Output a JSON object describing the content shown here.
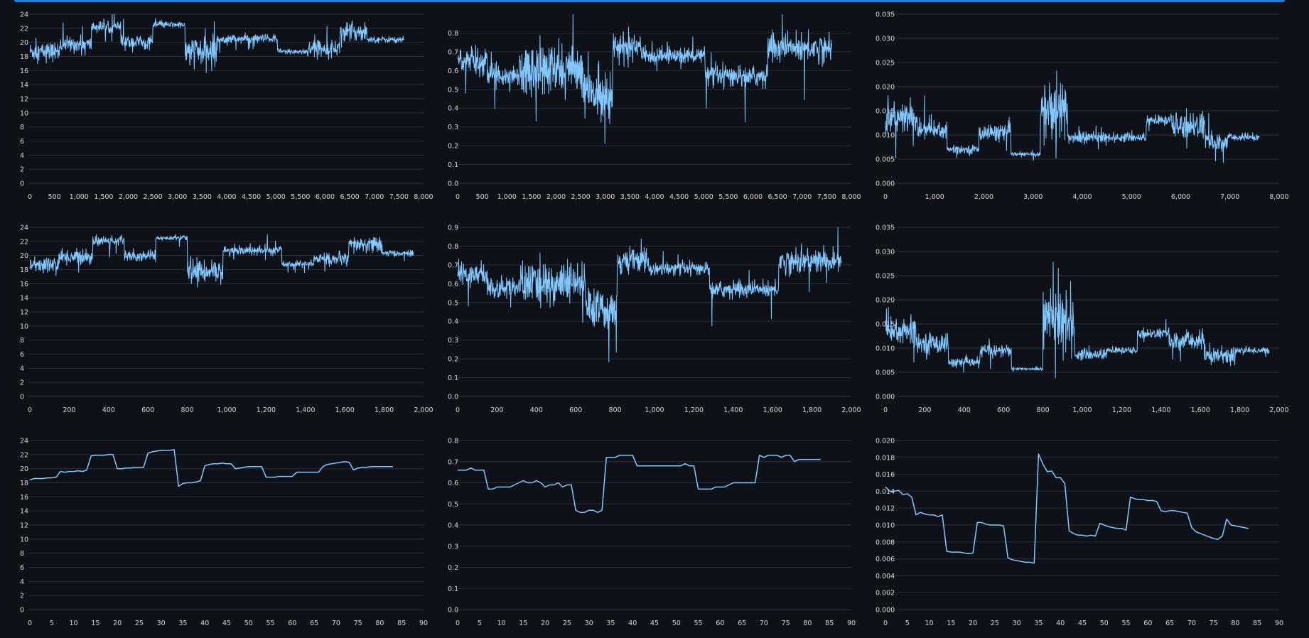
{
  "colors": {
    "background": "#0e1117",
    "line": "#83c9ff",
    "grid": "#2a2e37",
    "accent": "#1c83e1",
    "tick": "#d6d6d9"
  },
  "charts": [
    {
      "type": "line",
      "row": 0,
      "col": 0,
      "xlim": [
        0,
        8000
      ],
      "xticks": [
        0,
        500,
        1000,
        1500,
        2000,
        2500,
        3000,
        3500,
        4000,
        4500,
        5000,
        5500,
        6000,
        6500,
        7000,
        7500,
        8000
      ],
      "ylim": [
        0,
        24
      ],
      "yticks": [
        0,
        2,
        4,
        6,
        8,
        10,
        12,
        14,
        16,
        18,
        20,
        22,
        24
      ],
      "x_end": 7600,
      "noise": true,
      "levels": [
        [
          0,
          18.7,
          1.2
        ],
        [
          600,
          19.7,
          1.0
        ],
        [
          1250,
          22.2,
          0.7
        ],
        [
          1850,
          20.0,
          0.9
        ],
        [
          2500,
          22.5,
          0.4
        ],
        [
          3150,
          18.6,
          2.0
        ],
        [
          3800,
          20.5,
          0.6
        ],
        [
          5030,
          18.7,
          0.4
        ],
        [
          5650,
          19.2,
          1.0
        ],
        [
          6300,
          21.5,
          1.2
        ],
        [
          6850,
          20.4,
          0.4
        ]
      ]
    },
    {
      "type": "line",
      "row": 0,
      "col": 1,
      "xlim": [
        0,
        8000
      ],
      "xticks": [
        0,
        500,
        1000,
        1500,
        2000,
        2500,
        3000,
        3500,
        4000,
        4500,
        5000,
        5500,
        6000,
        6500,
        7000,
        7500,
        8000
      ],
      "ylim": [
        0,
        0.9
      ],
      "yticks": [
        0,
        0.1,
        0.2,
        0.3,
        0.4,
        0.5,
        0.6,
        0.7,
        0.8
      ],
      "x_end": 7600,
      "noise": true,
      "levels": [
        [
          0,
          0.65,
          0.07
        ],
        [
          600,
          0.58,
          0.05
        ],
        [
          1250,
          0.6,
          0.13
        ],
        [
          2550,
          0.48,
          0.12
        ],
        [
          3150,
          0.72,
          0.07
        ],
        [
          3800,
          0.68,
          0.04
        ],
        [
          5030,
          0.57,
          0.05
        ],
        [
          6300,
          0.72,
          0.07
        ]
      ]
    },
    {
      "type": "line",
      "row": 0,
      "col": 2,
      "xlim": [
        0,
        8000
      ],
      "xticks": [
        0,
        1000,
        2000,
        3000,
        4000,
        5000,
        6000,
        7000,
        8000
      ],
      "ylim": [
        0,
        0.035
      ],
      "yticks": [
        0,
        0.005,
        0.01,
        0.015,
        0.02,
        0.025,
        0.03,
        0.035
      ],
      "x_end": 7600,
      "noise": true,
      "levels": [
        [
          0,
          0.0135,
          0.003
        ],
        [
          650,
          0.011,
          0.002
        ],
        [
          1250,
          0.007,
          0.0008
        ],
        [
          1900,
          0.0105,
          0.0015
        ],
        [
          2550,
          0.006,
          0.0004
        ],
        [
          3150,
          0.015,
          0.006
        ],
        [
          3700,
          0.0095,
          0.0012
        ],
        [
          4500,
          0.0095,
          0.0008
        ],
        [
          5300,
          0.013,
          0.001
        ],
        [
          5800,
          0.012,
          0.0025
        ],
        [
          6500,
          0.0085,
          0.0018
        ],
        [
          6950,
          0.0095,
          0.0007
        ]
      ]
    },
    {
      "type": "line",
      "row": 1,
      "col": 0,
      "xlim": [
        0,
        2000
      ],
      "xticks": [
        0,
        200,
        400,
        600,
        800,
        1000,
        1200,
        1400,
        1600,
        1800,
        2000
      ],
      "ylim": [
        0,
        24
      ],
      "yticks": [
        0,
        2,
        4,
        6,
        8,
        10,
        12,
        14,
        16,
        18,
        20,
        22,
        24
      ],
      "x_end": 1950,
      "noise": true,
      "levels": [
        [
          0,
          18.7,
          1.0
        ],
        [
          150,
          19.8,
          1.0
        ],
        [
          320,
          22.1,
          0.6
        ],
        [
          480,
          20.0,
          0.8
        ],
        [
          640,
          22.5,
          0.3
        ],
        [
          800,
          17.8,
          1.5
        ],
        [
          980,
          20.7,
          0.6
        ],
        [
          1280,
          18.8,
          0.4
        ],
        [
          1440,
          19.5,
          0.8
        ],
        [
          1620,
          21.5,
          1.0
        ],
        [
          1790,
          20.3,
          0.4
        ]
      ]
    },
    {
      "type": "line",
      "row": 1,
      "col": 1,
      "xlim": [
        0,
        2000
      ],
      "xticks": [
        0,
        200,
        400,
        600,
        800,
        1000,
        1200,
        1400,
        1600,
        1800,
        2000
      ],
      "ylim": [
        0,
        0.9
      ],
      "yticks": [
        0,
        0.1,
        0.2,
        0.3,
        0.4,
        0.5,
        0.6,
        0.7,
        0.8,
        0.9
      ],
      "x_end": 1950,
      "noise": true,
      "levels": [
        [
          0,
          0.65,
          0.06
        ],
        [
          150,
          0.58,
          0.05
        ],
        [
          320,
          0.6,
          0.1
        ],
        [
          650,
          0.46,
          0.1
        ],
        [
          810,
          0.72,
          0.06
        ],
        [
          970,
          0.68,
          0.03
        ],
        [
          1280,
          0.57,
          0.04
        ],
        [
          1630,
          0.72,
          0.06
        ]
      ]
    },
    {
      "type": "line",
      "row": 1,
      "col": 2,
      "xlim": [
        0,
        2000
      ],
      "xticks": [
        0,
        200,
        400,
        600,
        800,
        1000,
        1200,
        1400,
        1600,
        1800,
        2000
      ],
      "ylim": [
        0,
        0.035
      ],
      "yticks": [
        0,
        0.005,
        0.01,
        0.015,
        0.02,
        0.025,
        0.03,
        0.035
      ],
      "x_end": 1950,
      "noise": true,
      "levels": [
        [
          0,
          0.0135,
          0.003
        ],
        [
          160,
          0.011,
          0.002
        ],
        [
          320,
          0.007,
          0.0008
        ],
        [
          480,
          0.0095,
          0.0012
        ],
        [
          640,
          0.0057,
          0.0003
        ],
        [
          800,
          0.016,
          0.006
        ],
        [
          960,
          0.0087,
          0.001
        ],
        [
          1120,
          0.0095,
          0.0007
        ],
        [
          1280,
          0.013,
          0.0009
        ],
        [
          1440,
          0.0115,
          0.0018
        ],
        [
          1620,
          0.0085,
          0.0018
        ],
        [
          1780,
          0.0095,
          0.0006
        ]
      ]
    },
    {
      "type": "line",
      "row": 2,
      "col": 0,
      "xlim": [
        0,
        90
      ],
      "xticks": [
        0,
        5,
        10,
        15,
        20,
        25,
        30,
        35,
        40,
        45,
        50,
        55,
        60,
        65,
        70,
        75,
        80,
        85,
        90
      ],
      "ylim": [
        0,
        24
      ],
      "yticks": [
        0,
        2,
        4,
        6,
        8,
        10,
        12,
        14,
        16,
        18,
        20,
        22,
        24
      ],
      "noise": false,
      "x": [
        0,
        1,
        2,
        3,
        4,
        5,
        6,
        7,
        8,
        9,
        10,
        11,
        12,
        13,
        14,
        15,
        16,
        17,
        18,
        19,
        20,
        21,
        22,
        23,
        24,
        25,
        26,
        27,
        28,
        29,
        30,
        31,
        32,
        33,
        34,
        35,
        36,
        37,
        38,
        39,
        40,
        41,
        42,
        43,
        44,
        45,
        46,
        47,
        48,
        49,
        50,
        51,
        52,
        53,
        54,
        55,
        56,
        57,
        58,
        59,
        60,
        61,
        62,
        63,
        64,
        65,
        66,
        67,
        68,
        69,
        70,
        71,
        72,
        73,
        74,
        75,
        76,
        77,
        78,
        79,
        80,
        81,
        82,
        83
      ],
      "values": [
        18.4,
        18.6,
        18.6,
        18.6,
        18.7,
        18.7,
        18.8,
        19.6,
        19.5,
        19.6,
        19.6,
        19.7,
        19.6,
        19.8,
        21.8,
        21.9,
        21.9,
        21.9,
        22.0,
        22.0,
        20.0,
        20.0,
        20.1,
        20.1,
        20.2,
        20.2,
        20.2,
        22.2,
        22.4,
        22.5,
        22.6,
        22.6,
        22.6,
        22.7,
        17.5,
        17.9,
        18.0,
        18.0,
        18.1,
        18.3,
        20.4,
        20.6,
        20.7,
        20.7,
        20.8,
        20.7,
        20.7,
        20.0,
        20.1,
        20.2,
        20.3,
        20.3,
        20.3,
        20.3,
        18.8,
        18.8,
        18.8,
        18.9,
        18.9,
        18.9,
        18.9,
        19.5,
        19.5,
        19.5,
        19.5,
        19.5,
        19.5,
        20.3,
        20.6,
        20.7,
        20.8,
        20.9,
        21.0,
        20.9,
        19.8,
        20.1,
        20.2,
        20.2,
        20.3,
        20.3,
        20.3,
        20.3,
        20.3,
        20.3
      ]
    },
    {
      "type": "line",
      "row": 2,
      "col": 1,
      "xlim": [
        0,
        90
      ],
      "xticks": [
        0,
        5,
        10,
        15,
        20,
        25,
        30,
        35,
        40,
        45,
        50,
        55,
        60,
        65,
        70,
        75,
        80,
        85,
        90
      ],
      "ylim": [
        0,
        0.8
      ],
      "yticks": [
        0,
        0.1,
        0.2,
        0.3,
        0.4,
        0.5,
        0.6,
        0.7,
        0.8
      ],
      "noise": false,
      "x": [
        0,
        1,
        2,
        3,
        4,
        5,
        6,
        7,
        8,
        9,
        10,
        11,
        12,
        13,
        14,
        15,
        16,
        17,
        18,
        19,
        20,
        21,
        22,
        23,
        24,
        25,
        26,
        27,
        28,
        29,
        30,
        31,
        32,
        33,
        34,
        35,
        36,
        37,
        38,
        39,
        40,
        41,
        42,
        43,
        44,
        45,
        46,
        47,
        48,
        49,
        50,
        51,
        52,
        53,
        54,
        55,
        56,
        57,
        58,
        59,
        60,
        61,
        62,
        63,
        64,
        65,
        66,
        67,
        68,
        69,
        70,
        71,
        72,
        73,
        74,
        75,
        76,
        77,
        78,
        79,
        80,
        81,
        82,
        83
      ],
      "values": [
        0.66,
        0.66,
        0.66,
        0.67,
        0.66,
        0.66,
        0.66,
        0.57,
        0.57,
        0.58,
        0.58,
        0.58,
        0.58,
        0.59,
        0.6,
        0.61,
        0.6,
        0.6,
        0.61,
        0.6,
        0.58,
        0.59,
        0.59,
        0.6,
        0.58,
        0.59,
        0.59,
        0.47,
        0.46,
        0.46,
        0.47,
        0.47,
        0.46,
        0.47,
        0.72,
        0.72,
        0.72,
        0.73,
        0.73,
        0.73,
        0.73,
        0.68,
        0.68,
        0.68,
        0.68,
        0.68,
        0.68,
        0.68,
        0.68,
        0.68,
        0.68,
        0.68,
        0.69,
        0.68,
        0.68,
        0.57,
        0.57,
        0.57,
        0.57,
        0.58,
        0.58,
        0.58,
        0.59,
        0.6,
        0.6,
        0.6,
        0.6,
        0.6,
        0.6,
        0.73,
        0.72,
        0.73,
        0.73,
        0.73,
        0.72,
        0.73,
        0.73,
        0.7,
        0.71,
        0.71,
        0.71,
        0.71,
        0.71,
        0.71
      ]
    },
    {
      "type": "line",
      "row": 2,
      "col": 2,
      "xlim": [
        0,
        90
      ],
      "xticks": [
        0,
        5,
        10,
        15,
        20,
        25,
        30,
        35,
        40,
        45,
        50,
        55,
        60,
        65,
        70,
        75,
        80,
        85,
        90
      ],
      "ylim": [
        0,
        0.02
      ],
      "yticks": [
        0,
        0.002,
        0.004,
        0.006,
        0.008,
        0.01,
        0.012,
        0.014,
        0.016,
        0.018,
        0.02
      ],
      "noise": false,
      "x": [
        0,
        1,
        2,
        3,
        4,
        5,
        6,
        7,
        8,
        9,
        10,
        11,
        12,
        13,
        14,
        15,
        16,
        17,
        18,
        19,
        20,
        21,
        22,
        23,
        24,
        25,
        26,
        27,
        28,
        29,
        30,
        31,
        32,
        33,
        34,
        35,
        36,
        37,
        38,
        39,
        40,
        41,
        42,
        43,
        44,
        45,
        46,
        47,
        48,
        49,
        50,
        51,
        52,
        53,
        54,
        55,
        56,
        57,
        58,
        59,
        60,
        61,
        62,
        63,
        64,
        65,
        66,
        67,
        68,
        69,
        70,
        71,
        72,
        73,
        74,
        75,
        76,
        77,
        78,
        79,
        80,
        81,
        82,
        83
      ],
      "values": [
        0.0145,
        0.014,
        0.014,
        0.0141,
        0.0136,
        0.0137,
        0.0133,
        0.0112,
        0.0115,
        0.0113,
        0.0112,
        0.0112,
        0.011,
        0.0112,
        0.0069,
        0.0068,
        0.0068,
        0.0068,
        0.0067,
        0.0066,
        0.0067,
        0.0103,
        0.0103,
        0.0101,
        0.01,
        0.01,
        0.01,
        0.0099,
        0.0061,
        0.0059,
        0.0058,
        0.0057,
        0.0056,
        0.0056,
        0.0055,
        0.0184,
        0.0172,
        0.0163,
        0.0164,
        0.0156,
        0.0156,
        0.0149,
        0.0093,
        0.009,
        0.0088,
        0.0088,
        0.0087,
        0.0088,
        0.0087,
        0.0102,
        0.01,
        0.0098,
        0.0097,
        0.0096,
        0.0096,
        0.0094,
        0.0133,
        0.0131,
        0.013,
        0.013,
        0.0129,
        0.0129,
        0.0128,
        0.0117,
        0.0116,
        0.0117,
        0.0117,
        0.0116,
        0.0115,
        0.0114,
        0.0097,
        0.0092,
        0.009,
        0.0088,
        0.0086,
        0.0084,
        0.0083,
        0.0087,
        0.0107,
        0.01,
        0.0099,
        0.0098,
        0.0097,
        0.0096
      ]
    }
  ]
}
